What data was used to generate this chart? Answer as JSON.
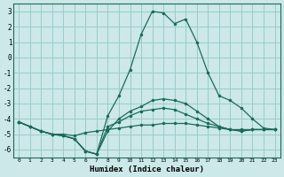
{
  "xlabel": "Humidex (Indice chaleur)",
  "bg_color": "#cce8e8",
  "grid_color": "#99cccc",
  "line_color": "#1a6b5a",
  "xlim": [
    -0.5,
    23.5
  ],
  "ylim": [
    -6.5,
    3.5
  ],
  "xticks": [
    0,
    1,
    2,
    3,
    4,
    5,
    6,
    7,
    8,
    9,
    10,
    11,
    12,
    13,
    14,
    15,
    16,
    17,
    18,
    19,
    20,
    21,
    22,
    23
  ],
  "yticks": [
    -6,
    -5,
    -4,
    -3,
    -2,
    -1,
    0,
    1,
    2,
    3
  ],
  "lines": [
    {
      "x": [
        0,
        1,
        2,
        3,
        4,
        5,
        6,
        7,
        8,
        9,
        10,
        11,
        12,
        13,
        14,
        15,
        16,
        17,
        18,
        19,
        20,
        21,
        22,
        23
      ],
      "y": [
        -4.2,
        -4.5,
        -4.8,
        -5.0,
        -5.0,
        -5.1,
        -4.9,
        -4.8,
        -4.7,
        -4.6,
        -4.5,
        -4.4,
        -4.4,
        -4.3,
        -4.3,
        -4.3,
        -4.4,
        -4.5,
        -4.6,
        -4.7,
        -4.7,
        -4.7,
        -4.7,
        -4.7
      ]
    },
    {
      "x": [
        0,
        1,
        2,
        3,
        4,
        5,
        6,
        7,
        8,
        9,
        10,
        11,
        12,
        13,
        14,
        15,
        16,
        17,
        18,
        19,
        20,
        21,
        22,
        23
      ],
      "y": [
        -4.2,
        -4.5,
        -4.8,
        -5.0,
        -5.1,
        -5.3,
        -6.1,
        -6.3,
        -3.8,
        -2.5,
        -0.8,
        1.5,
        3.0,
        2.9,
        2.2,
        2.5,
        1.0,
        -1.0,
        -2.5,
        -2.8,
        -3.3,
        -4.0,
        -4.6,
        -4.7
      ]
    },
    {
      "x": [
        0,
        1,
        2,
        3,
        4,
        5,
        6,
        7,
        8,
        9,
        10,
        11,
        12,
        13,
        14,
        15,
        16,
        17,
        18,
        19,
        20,
        21,
        22,
        23
      ],
      "y": [
        -4.2,
        -4.5,
        -4.8,
        -5.0,
        -5.1,
        -5.3,
        -6.1,
        -6.3,
        -4.8,
        -4.0,
        -3.5,
        -3.2,
        -2.8,
        -2.7,
        -2.8,
        -3.0,
        -3.5,
        -4.0,
        -4.5,
        -4.7,
        -4.8,
        -4.7,
        -4.7,
        -4.7
      ]
    },
    {
      "x": [
        0,
        1,
        2,
        3,
        4,
        5,
        6,
        7,
        8,
        9,
        10,
        11,
        12,
        13,
        14,
        15,
        16,
        17,
        18,
        19,
        20,
        21,
        22,
        23
      ],
      "y": [
        -4.2,
        -4.5,
        -4.8,
        -5.0,
        -5.1,
        -5.3,
        -6.1,
        -6.3,
        -4.5,
        -4.2,
        -3.8,
        -3.5,
        -3.4,
        -3.3,
        -3.4,
        -3.7,
        -4.0,
        -4.3,
        -4.5,
        -4.7,
        -4.8,
        -4.7,
        -4.7,
        -4.7
      ]
    }
  ]
}
